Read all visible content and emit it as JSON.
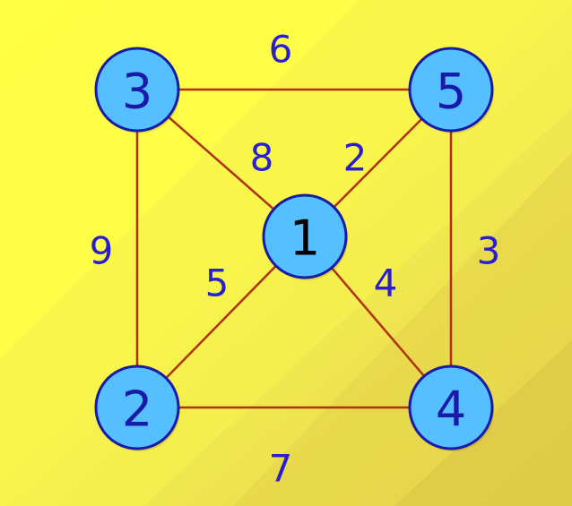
{
  "graph": {
    "nodes": [
      {
        "id": "1",
        "label": "1"
      },
      {
        "id": "2",
        "label": "2"
      },
      {
        "id": "3",
        "label": "3"
      },
      {
        "id": "4",
        "label": "4"
      },
      {
        "id": "5",
        "label": "5"
      }
    ],
    "edges": [
      {
        "from": "3",
        "to": "5",
        "weight": "6"
      },
      {
        "from": "3",
        "to": "1",
        "weight": "8"
      },
      {
        "from": "5",
        "to": "1",
        "weight": "2"
      },
      {
        "from": "3",
        "to": "2",
        "weight": "9"
      },
      {
        "from": "5",
        "to": "4",
        "weight": "3"
      },
      {
        "from": "2",
        "to": "1",
        "weight": "5"
      },
      {
        "from": "1",
        "to": "4",
        "weight": "4"
      },
      {
        "from": "2",
        "to": "4",
        "weight": "7"
      }
    ]
  },
  "colors": {
    "node_fill": "#55bfff",
    "node_stroke": "#1a1aa8",
    "edge_stroke": "#b03010",
    "weight_text": "#2a1fd0",
    "label_text_blue": "#1a1aa8",
    "label_text_center": "#000000"
  }
}
